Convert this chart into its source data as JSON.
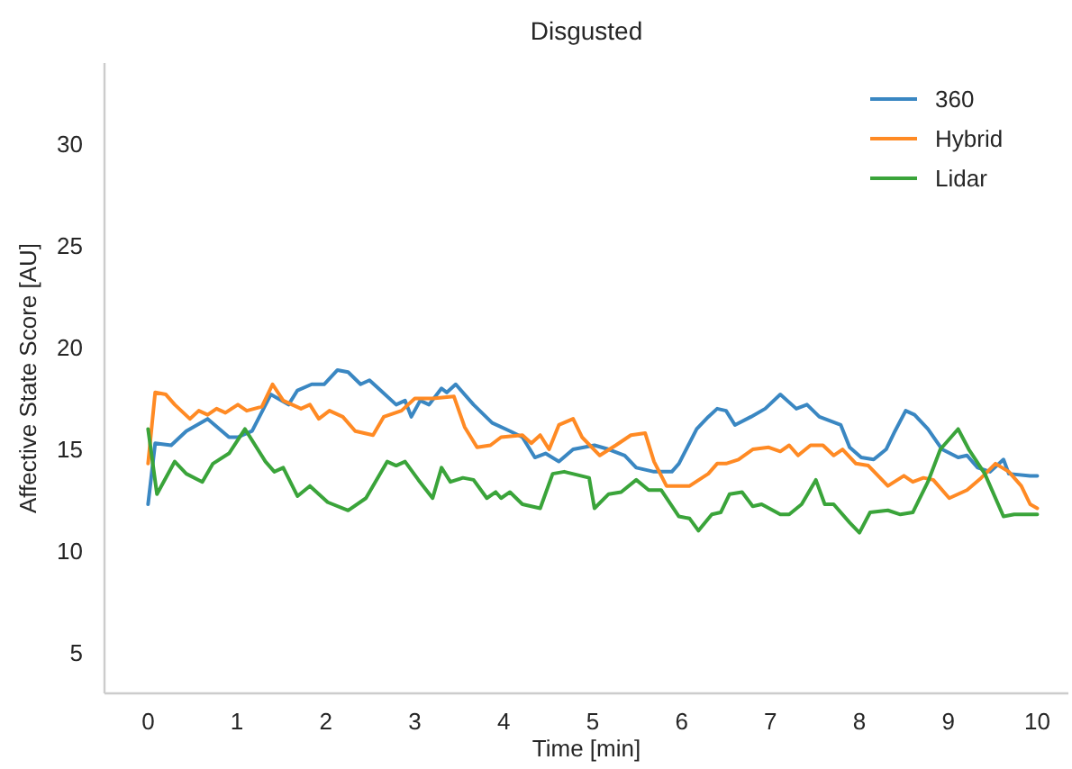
{
  "chart_data": {
    "type": "line",
    "title": "Disgusted",
    "xlabel": "Time [min]",
    "ylabel": "Affective State Score [AU]",
    "xlim": [
      -0.49,
      10.35
    ],
    "ylim": [
      3,
      34
    ],
    "xticks": [
      0,
      1,
      2,
      3,
      4,
      5,
      6,
      7,
      8,
      9,
      10
    ],
    "yticks": [
      5,
      10,
      15,
      20,
      25,
      30
    ],
    "grid": false,
    "legend": "top right",
    "line_style": "solid",
    "marker": "none",
    "series": [
      {
        "name": "360",
        "color": "#3a87c2",
        "x": [
          0,
          0.08,
          0.26,
          0.43,
          0.67,
          0.91,
          1.01,
          1.17,
          1.38,
          1.58,
          1.68,
          1.84,
          1.98,
          2.13,
          2.25,
          2.39,
          2.49,
          2.59,
          2.79,
          2.89,
          2.96,
          3.06,
          3.16,
          3.3,
          3.36,
          3.46,
          3.66,
          3.87,
          4.07,
          4.21,
          4.35,
          4.47,
          4.62,
          4.78,
          5.02,
          5.18,
          5.36,
          5.49,
          5.69,
          5.89,
          5.97,
          6.17,
          6.3,
          6.4,
          6.5,
          6.6,
          6.78,
          6.94,
          7.11,
          7.29,
          7.41,
          7.55,
          7.79,
          7.89,
          8.02,
          8.16,
          8.3,
          8.4,
          8.52,
          8.62,
          8.77,
          8.93,
          9.11,
          9.21,
          9.33,
          9.47,
          9.62,
          9.68,
          9.92,
          10
        ],
        "values": [
          12.3,
          15.3,
          15.2,
          15.9,
          16.5,
          15.6,
          15.6,
          15.9,
          17.7,
          17.2,
          17.9,
          18.2,
          18.2,
          18.9,
          18.8,
          18.2,
          18.4,
          18,
          17.2,
          17.4,
          16.6,
          17.4,
          17.2,
          18,
          17.8,
          18.2,
          17.2,
          16.3,
          15.9,
          15.6,
          14.6,
          14.8,
          14.4,
          15,
          15.2,
          15,
          14.7,
          14.1,
          13.9,
          13.9,
          14.3,
          16,
          16.6,
          17,
          16.9,
          16.2,
          16.6,
          17,
          17.7,
          17,
          17.2,
          16.6,
          16.2,
          15.1,
          14.6,
          14.5,
          15,
          15.9,
          16.9,
          16.7,
          16,
          15,
          14.6,
          14.7,
          14.1,
          13.9,
          14.5,
          13.8,
          13.7,
          13.7
        ]
      },
      {
        "name": "Hybrid",
        "color": "#ff8a24",
        "x": [
          0,
          0.08,
          0.2,
          0.3,
          0.47,
          0.57,
          0.67,
          0.77,
          0.87,
          1.01,
          1.11,
          1.28,
          1.4,
          1.52,
          1.72,
          1.82,
          1.92,
          2.04,
          2.19,
          2.33,
          2.53,
          2.65,
          2.85,
          3,
          3.2,
          3.44,
          3.56,
          3.7,
          3.85,
          3.97,
          4.21,
          4.31,
          4.41,
          4.51,
          4.62,
          4.78,
          4.88,
          5.08,
          5.26,
          5.43,
          5.59,
          5.69,
          5.83,
          6.09,
          6.3,
          6.4,
          6.5,
          6.64,
          6.8,
          6.98,
          7.11,
          7.21,
          7.31,
          7.45,
          7.59,
          7.71,
          7.81,
          7.96,
          8.1,
          8.32,
          8.5,
          8.6,
          8.72,
          8.83,
          9.01,
          9.21,
          9.37,
          9.53,
          9.68,
          9.82,
          9.92,
          10
        ],
        "values": [
          14.3,
          17.8,
          17.7,
          17.2,
          16.5,
          16.9,
          16.7,
          17,
          16.8,
          17.2,
          16.9,
          17.1,
          18.2,
          17.4,
          17,
          17.2,
          16.5,
          16.9,
          16.6,
          15.9,
          15.7,
          16.6,
          16.9,
          17.5,
          17.5,
          17.6,
          16.1,
          15.1,
          15.2,
          15.6,
          15.7,
          15.3,
          15.7,
          15,
          16.2,
          16.5,
          15.6,
          14.7,
          15.2,
          15.7,
          15.8,
          14.4,
          13.2,
          13.2,
          13.8,
          14.3,
          14.3,
          14.5,
          15,
          15.1,
          14.9,
          15.2,
          14.7,
          15.2,
          15.2,
          14.7,
          15,
          14.3,
          14.2,
          13.2,
          13.7,
          13.4,
          13.6,
          13.5,
          12.6,
          13,
          13.6,
          14.3,
          13.9,
          13.2,
          12.3,
          12.1
        ]
      },
      {
        "name": "Lidar",
        "color": "#3aa43a",
        "x": [
          0,
          0.1,
          0.3,
          0.43,
          0.61,
          0.73,
          0.91,
          1.09,
          1.32,
          1.42,
          1.52,
          1.68,
          1.82,
          2.02,
          2.25,
          2.45,
          2.69,
          2.79,
          2.89,
          3.04,
          3.2,
          3.3,
          3.4,
          3.54,
          3.66,
          3.81,
          3.91,
          3.97,
          4.07,
          4.21,
          4.41,
          4.55,
          4.68,
          4.96,
          5.02,
          5.18,
          5.32,
          5.49,
          5.63,
          5.77,
          5.97,
          6.09,
          6.19,
          6.34,
          6.44,
          6.54,
          6.68,
          6.8,
          6.9,
          7.11,
          7.21,
          7.35,
          7.51,
          7.61,
          7.71,
          7.89,
          8,
          8.12,
          8.32,
          8.46,
          8.6,
          8.77,
          8.91,
          9.11,
          9.23,
          9.41,
          9.62,
          9.74,
          9.92,
          10
        ],
        "values": [
          16,
          12.8,
          14.4,
          13.8,
          13.4,
          14.3,
          14.8,
          16,
          14.4,
          13.9,
          14.1,
          12.7,
          13.2,
          12.4,
          12,
          12.6,
          14.4,
          14.2,
          14.4,
          13.5,
          12.6,
          14.1,
          13.4,
          13.6,
          13.5,
          12.6,
          12.9,
          12.6,
          12.9,
          12.3,
          12.1,
          13.8,
          13.9,
          13.6,
          12.1,
          12.8,
          12.9,
          13.5,
          13,
          13,
          11.7,
          11.6,
          11,
          11.8,
          11.9,
          12.8,
          12.9,
          12.2,
          12.3,
          11.8,
          11.8,
          12.3,
          13.5,
          12.3,
          12.3,
          11.4,
          10.9,
          11.9,
          12,
          11.8,
          11.9,
          13.4,
          15,
          16,
          15,
          13.8,
          11.7,
          11.8,
          11.8,
          11.8
        ]
      }
    ]
  }
}
